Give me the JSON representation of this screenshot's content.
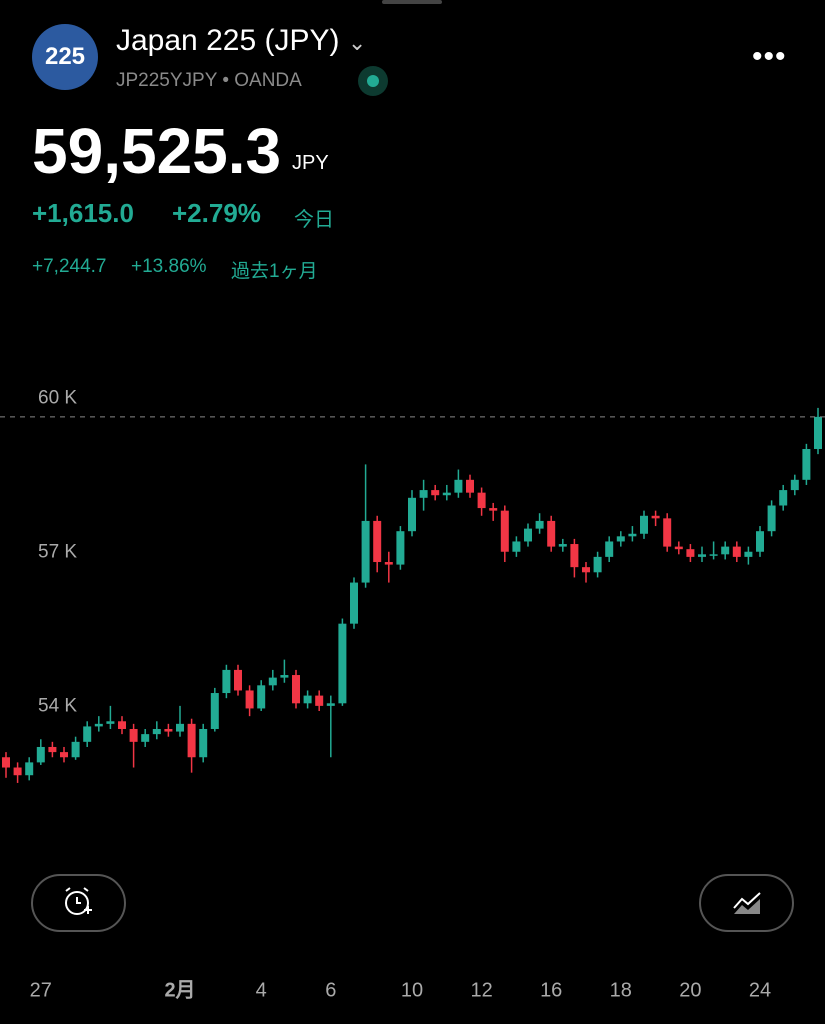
{
  "header": {
    "icon": "225",
    "title": "Japan 225 (JPY)",
    "subtitle": "JP225YJPY • OANDA",
    "price": "59,525.3",
    "currency": "JPY",
    "day_change": "+1,615.0",
    "day_change_pct": "+2.79%",
    "day_label": "今日",
    "month_change": "+7,244.7",
    "month_change_pct": "+13.86%",
    "month_label": "過去1ヶ月"
  },
  "chart_data": {
    "type": "candlestick",
    "categories": [
      null,
      null,
      null,
      "27",
      null,
      null,
      null,
      null,
      null,
      null,
      null,
      null,
      null,
      null,
      null,
      "2月",
      null,
      null,
      null,
      null,
      null,
      null,
      "4",
      null,
      null,
      null,
      null,
      null,
      "6",
      null,
      null,
      null,
      null,
      null,
      null,
      "10",
      null,
      null,
      null,
      null,
      null,
      "12",
      null,
      null,
      null,
      null,
      null,
      "16",
      null,
      null,
      null,
      null,
      null,
      "18",
      null,
      null,
      null,
      null,
      null,
      "20",
      null,
      null,
      null,
      null,
      null,
      "24",
      null,
      null,
      null,
      null,
      null
    ],
    "open": [
      52900,
      52700,
      52550,
      52800,
      53100,
      53000,
      52900,
      53200,
      53500,
      53550,
      53600,
      53450,
      53200,
      53350,
      53450,
      53400,
      53550,
      52900,
      53450,
      54150,
      54600,
      54200,
      53850,
      54300,
      54450,
      54500,
      53950,
      54100,
      53900,
      53950,
      55500,
      56300,
      57500,
      56700,
      56650,
      57300,
      57950,
      58100,
      58000,
      58050,
      58300,
      58050,
      57750,
      57700,
      56900,
      57100,
      57350,
      57500,
      57000,
      57050,
      56600,
      56500,
      56800,
      57100,
      57200,
      57250,
      57600,
      57550,
      57000,
      56950,
      56800,
      56850,
      56850,
      57000,
      56800,
      56900,
      57300,
      57800,
      58100,
      58300,
      58900
    ],
    "high": [
      53000,
      52800,
      52900,
      53250,
      53200,
      53100,
      53300,
      53600,
      53700,
      53900,
      53700,
      53550,
      53450,
      53600,
      53550,
      53900,
      53650,
      53550,
      54250,
      54700,
      54700,
      54300,
      54400,
      54600,
      54800,
      54600,
      54200,
      54200,
      54100,
      55600,
      56400,
      58600,
      57600,
      56900,
      57400,
      58100,
      58300,
      58200,
      58200,
      58500,
      58400,
      58150,
      57850,
      57800,
      57200,
      57450,
      57650,
      57600,
      57150,
      57150,
      56700,
      56900,
      57200,
      57300,
      57400,
      57700,
      57700,
      57650,
      57100,
      57050,
      57000,
      57100,
      57100,
      57100,
      57000,
      57400,
      57900,
      58200,
      58400,
      59000,
      59700
    ],
    "low": [
      52500,
      52400,
      52450,
      52750,
      52900,
      52800,
      52850,
      53100,
      53400,
      53450,
      53350,
      52700,
      53100,
      53250,
      53300,
      53300,
      52600,
      52800,
      53400,
      54050,
      54100,
      53700,
      53800,
      54200,
      54350,
      53850,
      53850,
      53800,
      52900,
      53900,
      55400,
      56200,
      56500,
      56300,
      56550,
      57200,
      57700,
      57900,
      57900,
      57950,
      57950,
      57600,
      57500,
      56700,
      56800,
      57000,
      57250,
      56900,
      56900,
      56400,
      56300,
      56400,
      56700,
      57000,
      57100,
      57150,
      57400,
      56900,
      56850,
      56700,
      56700,
      56750,
      56750,
      56700,
      56650,
      56800,
      57200,
      57700,
      58000,
      58200,
      58800
    ],
    "close": [
      52700,
      52550,
      52800,
      53100,
      53000,
      52900,
      53200,
      53500,
      53550,
      53600,
      53450,
      53200,
      53350,
      53450,
      53400,
      53550,
      52900,
      53450,
      54150,
      54600,
      54200,
      53850,
      54300,
      54450,
      54500,
      53950,
      54100,
      53900,
      53950,
      55500,
      56300,
      57500,
      56700,
      56650,
      57300,
      57950,
      58100,
      58000,
      58050,
      58300,
      58050,
      57750,
      57700,
      56900,
      57100,
      57350,
      57500,
      57000,
      57050,
      56600,
      56500,
      56800,
      57100,
      57200,
      57250,
      57600,
      57550,
      57000,
      56950,
      56800,
      56850,
      56850,
      57000,
      56800,
      56900,
      57300,
      57800,
      58100,
      58300,
      58900,
      59525.3
    ],
    "up_color": "#22ab94",
    "down_color": "#f23645",
    "ylim": [
      50900,
      61800
    ],
    "yticks": [
      {
        "value": 60000,
        "label": "60 K"
      },
      {
        "value": 57000,
        "label": "57 K"
      },
      {
        "value": 54000,
        "label": "54 K"
      }
    ]
  }
}
